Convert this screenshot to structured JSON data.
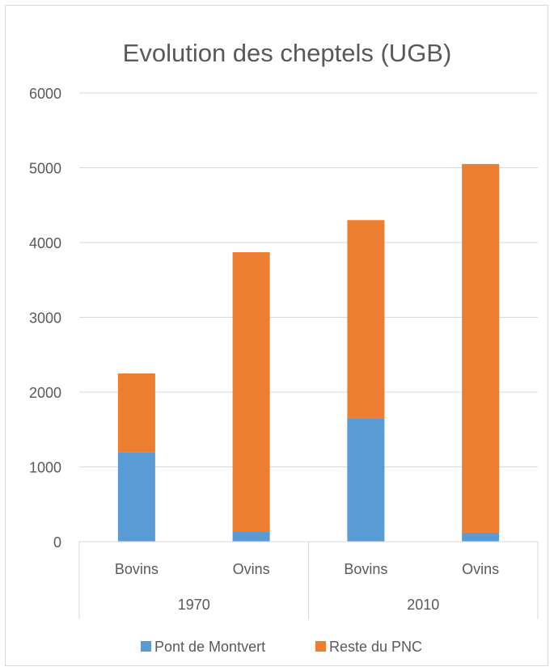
{
  "chart_data": {
    "type": "bar",
    "stacked": true,
    "title": "Evolution des cheptels (UGB)",
    "xlabel": "",
    "ylabel": "",
    "ylim": [
      0,
      6000
    ],
    "yticks": [
      0,
      1000,
      2000,
      3000,
      4000,
      5000,
      6000
    ],
    "groups": [
      {
        "label": "1970",
        "categories": [
          "Bovins",
          "Ovins"
        ]
      },
      {
        "label": "2010",
        "categories": [
          "Bovins",
          "Ovins"
        ]
      }
    ],
    "series": [
      {
        "name": "Pont de Montvert",
        "color": "#5b9bd5",
        "values": [
          1190,
          130,
          1650,
          120
        ]
      },
      {
        "name": "Reste du PNC",
        "color": "#ed7d31",
        "values": [
          1060,
          3740,
          2650,
          4930
        ]
      }
    ],
    "grid": true,
    "legend_position": "bottom"
  }
}
